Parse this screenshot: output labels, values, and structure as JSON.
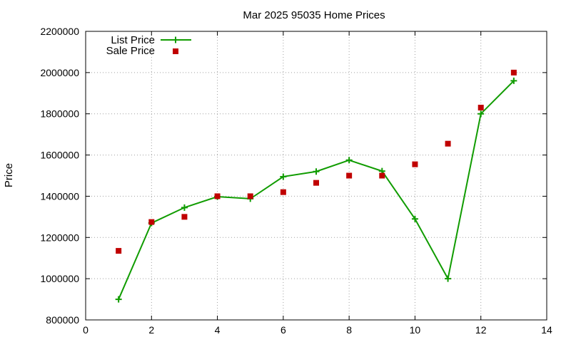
{
  "chart_data": {
    "type": "line",
    "title": "Mar 2025 95035 Home Prices",
    "xlabel": "",
    "ylabel": "Price",
    "xlim": [
      0,
      14
    ],
    "ylim": [
      800000,
      2200000
    ],
    "x_ticks": [
      0,
      2,
      4,
      6,
      8,
      10,
      12,
      14
    ],
    "y_ticks": [
      800000,
      1000000,
      1200000,
      1400000,
      1600000,
      1800000,
      2000000,
      2200000
    ],
    "x_tick_labels": [
      "0",
      "2",
      "4",
      "6",
      "8",
      "10",
      "12",
      "14"
    ],
    "y_tick_labels": [
      "800000",
      "1000000",
      "1200000",
      "1400000",
      "1600000",
      "1800000",
      "2000000",
      "2200000"
    ],
    "grid": true,
    "legend_position": "top-left",
    "series": [
      {
        "name": "List Price",
        "style": "line+cross",
        "color": "#109c00",
        "x": [
          1,
          2,
          3,
          4,
          5,
          6,
          7,
          8,
          9,
          10,
          11,
          12,
          13
        ],
        "y": [
          900000,
          1270000,
          1345000,
          1398000,
          1388000,
          1495000,
          1520000,
          1575000,
          1522000,
          1290000,
          1000000,
          1800000,
          1960000
        ]
      },
      {
        "name": "Sale Price",
        "style": "square",
        "color": "#c00000",
        "x": [
          1,
          2,
          3,
          4,
          5,
          6,
          7,
          8,
          9,
          10,
          11,
          12,
          13
        ],
        "y": [
          1135000,
          1275000,
          1300000,
          1400000,
          1400000,
          1420000,
          1465000,
          1500000,
          1500000,
          1555000,
          1655000,
          1830000,
          2000000
        ]
      }
    ]
  }
}
